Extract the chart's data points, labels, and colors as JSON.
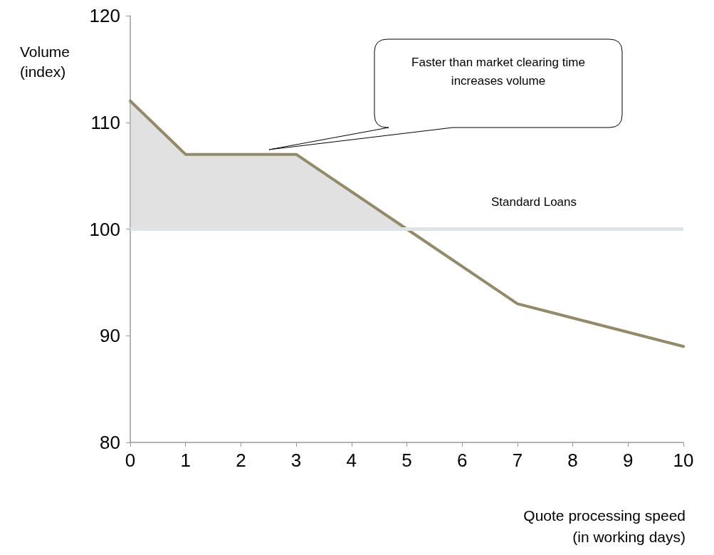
{
  "chart_data": {
    "type": "line",
    "xlabel": "Quote processing speed\n(in working days)",
    "ylabel": "Volume\n(index)",
    "series": [
      {
        "color": "#938a6a",
        "x": [
          0,
          1,
          3,
          5,
          7,
          10
        ],
        "values": [
          112,
          107,
          107,
          100,
          93,
          89
        ],
        "lower": [
          100,
          100,
          100,
          100,
          null,
          null
        ],
        "upper": [
          112,
          107,
          107,
          100,
          null,
          null
        ]
      }
    ],
    "xlim": [
      0,
      10
    ],
    "xticks": [
      0,
      1,
      2,
      3,
      4,
      5,
      6,
      7,
      8,
      9,
      10
    ],
    "ylim": [
      80,
      120
    ],
    "yticks": [
      80,
      90,
      100,
      110,
      120
    ],
    "ref_lines": [
      {
        "axis": "y",
        "value": 100,
        "label": "Standard Loans",
        "color": "#dce6e6"
      }
    ],
    "annotations": [
      "Faster than market clearing time\nincreases volume"
    ],
    "grid": false,
    "marker": "none",
    "line_style": "solid"
  }
}
